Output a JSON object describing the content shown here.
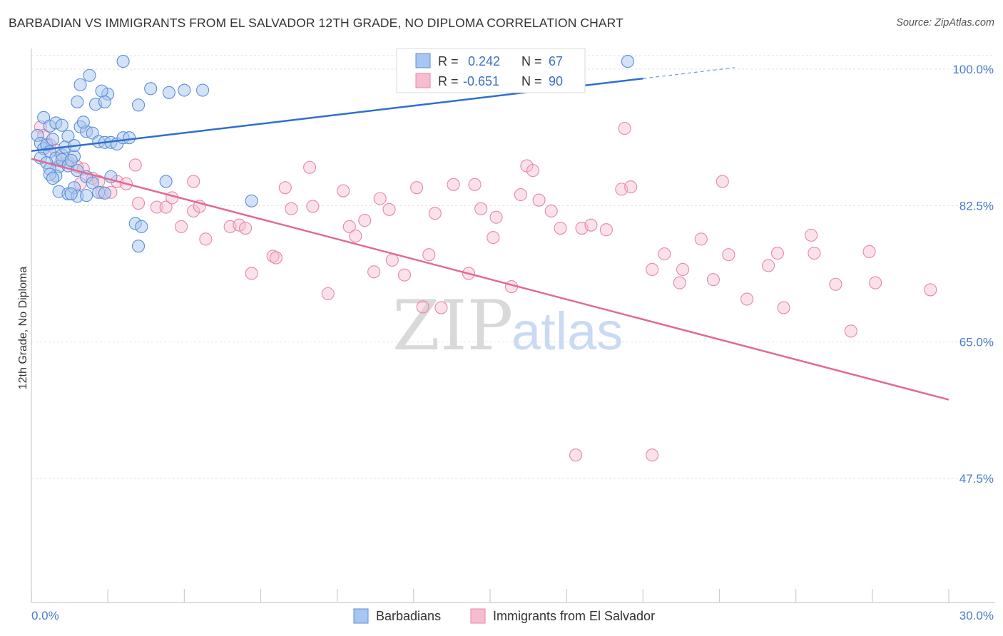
{
  "title": "BARBADIAN VS IMMIGRANTS FROM EL SALVADOR 12TH GRADE, NO DIPLOMA CORRELATION CHART",
  "source": "Source: ZipAtlas.com",
  "watermark": {
    "zip": "ZIP",
    "atlas": "atlas"
  },
  "legend_top": {
    "rows": [
      {
        "r_label": "R =",
        "r_value": "0.242",
        "n_label": "N =",
        "n_value": "67"
      },
      {
        "r_label": "R =",
        "r_value": "-0.651",
        "n_label": "N =",
        "n_value": "90"
      }
    ]
  },
  "legend_bottom": {
    "items": [
      "Barbadians",
      "Immigrants from El Salvador"
    ]
  },
  "colors": {
    "blue_fill": "#a9c6f0",
    "blue_stroke": "#5a8fd8",
    "blue_line": "#2f6fcc",
    "pink_fill": "#f6bcd0",
    "pink_stroke": "#e687a8",
    "pink_line": "#e06a96",
    "axis_label": "#4a7cc9",
    "grid": "#e2e2e2"
  },
  "chart_data": {
    "type": "scatter",
    "title": "BARBADIAN VS IMMIGRANTS FROM EL SALVADOR 12TH GRADE, NO DIPLOMA CORRELATION CHART",
    "xlabel": "",
    "ylabel": "12th Grade, No Diploma",
    "xlim": [
      0,
      30
    ],
    "ylim": [
      31.5,
      102
    ],
    "x_tick_labels": [
      "0.0%",
      "30.0%"
    ],
    "y_ticks": [
      47.5,
      65.0,
      82.5,
      100.0
    ],
    "y_tick_labels": [
      "47.5%",
      "65.0%",
      "82.5%",
      "100.0%"
    ],
    "grid": true,
    "legend_position": "top-center",
    "series": [
      {
        "name": "Barbadians",
        "color": "#5a8fd8",
        "r": 0.242,
        "n": 67,
        "trend": {
          "x0": 0,
          "y0": 89.5,
          "x1": 20,
          "y1": 98.8,
          "dash_to_x": 23,
          "dash_to_y": 100.2
        },
        "points": [
          [
            0.2,
            91.5
          ],
          [
            0.3,
            90.5
          ],
          [
            0.4,
            89.8
          ],
          [
            0.5,
            90.3
          ],
          [
            0.6,
            89.4
          ],
          [
            0.7,
            91.0
          ],
          [
            0.8,
            88.6
          ],
          [
            0.9,
            87.5
          ],
          [
            1.0,
            89.0
          ],
          [
            1.1,
            90.0
          ],
          [
            0.3,
            88.6
          ],
          [
            0.5,
            88.0
          ],
          [
            0.6,
            87.2
          ],
          [
            0.8,
            86.3
          ],
          [
            1.0,
            88.4
          ],
          [
            1.2,
            87.6
          ],
          [
            1.4,
            88.8
          ],
          [
            1.5,
            87.0
          ],
          [
            1.3,
            88.3
          ],
          [
            0.4,
            93.8
          ],
          [
            0.6,
            92.7
          ],
          [
            0.8,
            93.1
          ],
          [
            1.0,
            92.8
          ],
          [
            1.2,
            91.4
          ],
          [
            1.4,
            90.2
          ],
          [
            1.6,
            92.6
          ],
          [
            1.8,
            92.0
          ],
          [
            2.0,
            91.8
          ],
          [
            2.2,
            90.7
          ],
          [
            2.4,
            90.6
          ],
          [
            2.6,
            90.6
          ],
          [
            2.8,
            90.4
          ],
          [
            3.0,
            91.2
          ],
          [
            1.5,
            95.8
          ],
          [
            1.7,
            93.2
          ],
          [
            2.1,
            95.5
          ],
          [
            2.5,
            96.8
          ],
          [
            1.6,
            98.0
          ],
          [
            1.9,
            99.2
          ],
          [
            2.3,
            97.2
          ],
          [
            2.4,
            95.8
          ],
          [
            3.0,
            101.0
          ],
          [
            3.5,
            95.4
          ],
          [
            3.9,
            97.5
          ],
          [
            3.2,
            91.2
          ],
          [
            0.6,
            86.5
          ],
          [
            0.7,
            86.0
          ],
          [
            0.9,
            84.3
          ],
          [
            1.2,
            84.0
          ],
          [
            1.4,
            84.8
          ],
          [
            1.5,
            83.7
          ],
          [
            1.8,
            86.2
          ],
          [
            2.0,
            85.4
          ],
          [
            2.2,
            84.2
          ],
          [
            2.4,
            84.1
          ],
          [
            2.6,
            86.2
          ],
          [
            3.4,
            80.2
          ],
          [
            3.6,
            79.8
          ],
          [
            3.5,
            77.3
          ],
          [
            4.4,
            85.6
          ],
          [
            4.5,
            97.0
          ],
          [
            5.0,
            97.3
          ],
          [
            5.6,
            97.3
          ],
          [
            7.2,
            83.1
          ],
          [
            1.8,
            83.8
          ],
          [
            1.3,
            84.0
          ],
          [
            19.5,
            101.0
          ]
        ]
      },
      {
        "name": "Immigrants from El Salvador",
        "color": "#e687a8",
        "r": -0.651,
        "n": 90,
        "trend": {
          "x0": 0,
          "y0": 88.5,
          "x1": 30,
          "y1": 57.6
        },
        "points": [
          [
            0.3,
            92.6
          ],
          [
            0.4,
            91.5
          ],
          [
            0.6,
            90.3
          ],
          [
            0.8,
            89.6
          ],
          [
            1.0,
            88.4
          ],
          [
            1.2,
            88.0
          ],
          [
            1.5,
            87.5
          ],
          [
            1.7,
            87.2
          ],
          [
            2.0,
            86.0
          ],
          [
            2.2,
            85.6
          ],
          [
            1.6,
            85.3
          ],
          [
            2.3,
            84.2
          ],
          [
            2.6,
            84.2
          ],
          [
            2.8,
            85.6
          ],
          [
            3.1,
            85.3
          ],
          [
            3.4,
            87.7
          ],
          [
            3.5,
            82.8
          ],
          [
            4.1,
            82.3
          ],
          [
            4.4,
            82.3
          ],
          [
            4.6,
            83.5
          ],
          [
            5.3,
            81.8
          ],
          [
            5.5,
            82.4
          ],
          [
            5.3,
            85.6
          ],
          [
            4.9,
            79.8
          ],
          [
            5.7,
            78.2
          ],
          [
            6.5,
            79.8
          ],
          [
            6.8,
            80.0
          ],
          [
            7.0,
            79.6
          ],
          [
            7.2,
            73.8
          ],
          [
            7.9,
            76.0
          ],
          [
            8.0,
            75.8
          ],
          [
            8.3,
            84.8
          ],
          [
            8.5,
            82.1
          ],
          [
            9.1,
            87.4
          ],
          [
            9.2,
            82.4
          ],
          [
            9.7,
            71.2
          ],
          [
            10.2,
            84.4
          ],
          [
            10.4,
            79.8
          ],
          [
            10.6,
            78.6
          ],
          [
            10.9,
            80.6
          ],
          [
            11.2,
            74.0
          ],
          [
            11.4,
            83.4
          ],
          [
            11.7,
            82.0
          ],
          [
            11.8,
            75.5
          ],
          [
            12.2,
            73.6
          ],
          [
            12.6,
            84.8
          ],
          [
            12.8,
            69.5
          ],
          [
            13.0,
            76.2
          ],
          [
            13.2,
            81.5
          ],
          [
            13.4,
            69.4
          ],
          [
            13.8,
            85.2
          ],
          [
            14.3,
            73.8
          ],
          [
            14.5,
            85.2
          ],
          [
            14.7,
            82.1
          ],
          [
            15.1,
            78.4
          ],
          [
            15.2,
            81.0
          ],
          [
            15.7,
            72.1
          ],
          [
            16.0,
            83.9
          ],
          [
            16.2,
            87.6
          ],
          [
            16.4,
            87.0
          ],
          [
            16.6,
            83.2
          ],
          [
            17.0,
            81.8
          ],
          [
            17.3,
            79.6
          ],
          [
            18.0,
            79.6
          ],
          [
            18.3,
            80.0
          ],
          [
            18.8,
            79.4
          ],
          [
            19.3,
            84.6
          ],
          [
            19.6,
            84.9
          ],
          [
            19.4,
            92.4
          ],
          [
            20.3,
            74.3
          ],
          [
            20.7,
            76.3
          ],
          [
            21.2,
            72.6
          ],
          [
            21.3,
            74.3
          ],
          [
            21.9,
            78.2
          ],
          [
            22.3,
            73.0
          ],
          [
            22.6,
            85.6
          ],
          [
            22.8,
            76.2
          ],
          [
            23.4,
            70.5
          ],
          [
            24.1,
            74.8
          ],
          [
            24.4,
            76.4
          ],
          [
            24.6,
            69.4
          ],
          [
            25.5,
            78.7
          ],
          [
            25.6,
            76.4
          ],
          [
            26.3,
            72.4
          ],
          [
            26.8,
            66.4
          ],
          [
            27.4,
            76.6
          ],
          [
            27.6,
            72.6
          ],
          [
            20.3,
            50.5
          ],
          [
            17.8,
            50.5
          ],
          [
            29.4,
            71.7
          ]
        ]
      }
    ]
  }
}
